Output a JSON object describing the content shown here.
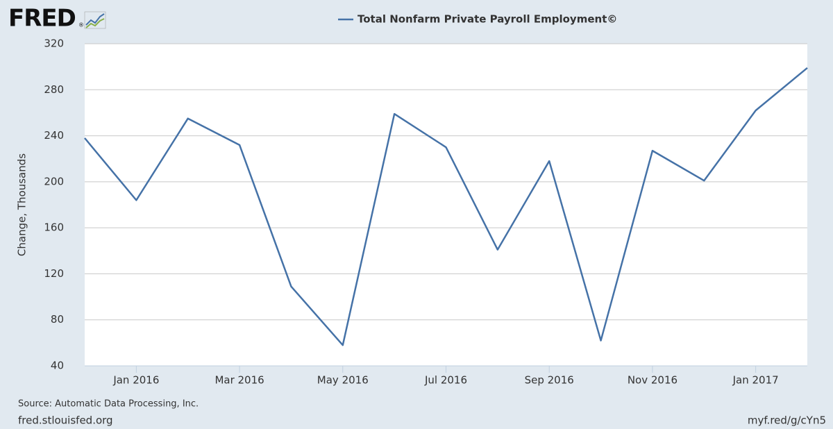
{
  "header": {
    "logo": "FRED",
    "logo_mark": "®"
  },
  "chart_data": {
    "type": "line",
    "ylabel": "Change, Thousands",
    "x": [
      "2015-12",
      "2016-01",
      "2016-02",
      "2016-03",
      "2016-04",
      "2016-05",
      "2016-06",
      "2016-07",
      "2016-08",
      "2016-09",
      "2016-10",
      "2016-11",
      "2016-12",
      "2017-01",
      "2017-02"
    ],
    "series": [
      {
        "name": "Total Nonfarm Private Payroll Employment©",
        "color": "#4572a7",
        "values": [
          238,
          184,
          255,
          232,
          109,
          58,
          259,
          230,
          141,
          218,
          62,
          227,
          201,
          262,
          299
        ]
      }
    ],
    "xlim": [
      "2015-12",
      "2017-02"
    ],
    "xticks": [
      {
        "value": "2016-01",
        "label": "Jan 2016"
      },
      {
        "value": "2016-03",
        "label": "Mar 2016"
      },
      {
        "value": "2016-05",
        "label": "May 2016"
      },
      {
        "value": "2016-07",
        "label": "Jul 2016"
      },
      {
        "value": "2016-09",
        "label": "Sep 2016"
      },
      {
        "value": "2016-11",
        "label": "Nov 2016"
      },
      {
        "value": "2017-01",
        "label": "Jan 2017"
      }
    ],
    "ylim": [
      40,
      320
    ],
    "yticks": [
      40,
      80,
      120,
      160,
      200,
      240,
      280,
      320
    ],
    "grid": true,
    "legend": "top"
  },
  "footer": {
    "source": "Source: Automatic Data Processing, Inc.",
    "site": "fred.stlouisfed.org",
    "short_link": "myf.red/g/cYn5"
  }
}
